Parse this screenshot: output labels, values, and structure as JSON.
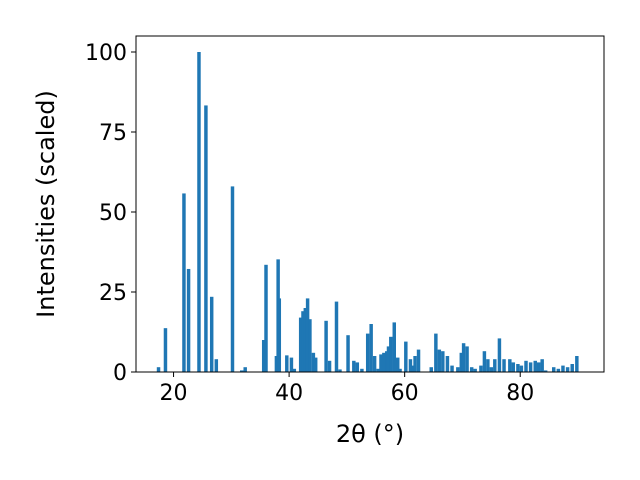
{
  "chart_data": {
    "type": "bar",
    "xlabel": "2θ (°)",
    "ylabel": "Intensities (scaled)",
    "xlim": [
      13.5,
      94.5
    ],
    "ylim": [
      0,
      105
    ],
    "x_ticks": [
      20,
      40,
      60,
      80
    ],
    "y_ticks": [
      0,
      25,
      50,
      75,
      100
    ],
    "bar_color": "#1f77b4",
    "grid": false,
    "bar_width": 0.6,
    "x": [
      17.4,
      18.6,
      21.8,
      22.6,
      24.4,
      25.6,
      26.6,
      27.4,
      30.2,
      31.8,
      32.4,
      35.6,
      36.0,
      37.8,
      38.1,
      38.3,
      39.6,
      40.4,
      40.9,
      42.0,
      42.4,
      42.8,
      43.2,
      43.6,
      44.2,
      44.6,
      46.4,
      47.0,
      48.2,
      48.8,
      50.2,
      51.2,
      51.8,
      52.6,
      53.6,
      54.2,
      54.8,
      55.4,
      55.9,
      56.4,
      56.9,
      57.2,
      57.6,
      58.2,
      58.8,
      59.2,
      60.2,
      61.0,
      61.4,
      61.8,
      62.4,
      64.6,
      65.4,
      66.0,
      66.6,
      67.4,
      68.2,
      69.2,
      69.8,
      70.2,
      70.8,
      71.6,
      72.2,
      73.2,
      73.8,
      74.4,
      75.0,
      75.6,
      76.4,
      77.2,
      78.2,
      78.8,
      79.6,
      80.2,
      81.0,
      81.8,
      82.6,
      83.2,
      83.8,
      84.4,
      85.8,
      86.6,
      87.4,
      88.2,
      89.0,
      89.8
    ],
    "values": [
      1.5,
      13.7,
      55.8,
      32.2,
      100.0,
      83.3,
      23.5,
      4.0,
      58.0,
      0.5,
      1.5,
      10.0,
      33.5,
      5.0,
      35.2,
      23.0,
      5.2,
      4.5,
      1.0,
      17.0,
      19.0,
      20.0,
      23.0,
      16.5,
      6.0,
      4.5,
      16.0,
      3.5,
      22.0,
      0.8,
      11.5,
      3.5,
      3.0,
      1.0,
      12.0,
      15.0,
      5.0,
      1.0,
      5.5,
      6.0,
      6.5,
      8.0,
      11.0,
      15.5,
      4.5,
      1.0,
      9.5,
      4.0,
      2.0,
      5.0,
      7.0,
      1.5,
      12.0,
      7.0,
      6.5,
      5.0,
      2.0,
      1.5,
      6.0,
      9.0,
      8.0,
      1.5,
      1.0,
      2.0,
      6.5,
      4.0,
      1.5,
      4.0,
      10.5,
      4.0,
      4.0,
      3.0,
      2.5,
      2.0,
      3.5,
      3.0,
      3.5,
      3.0,
      4.0,
      0.5,
      1.5,
      1.0,
      2.0,
      1.5,
      2.5,
      5.0
    ]
  }
}
